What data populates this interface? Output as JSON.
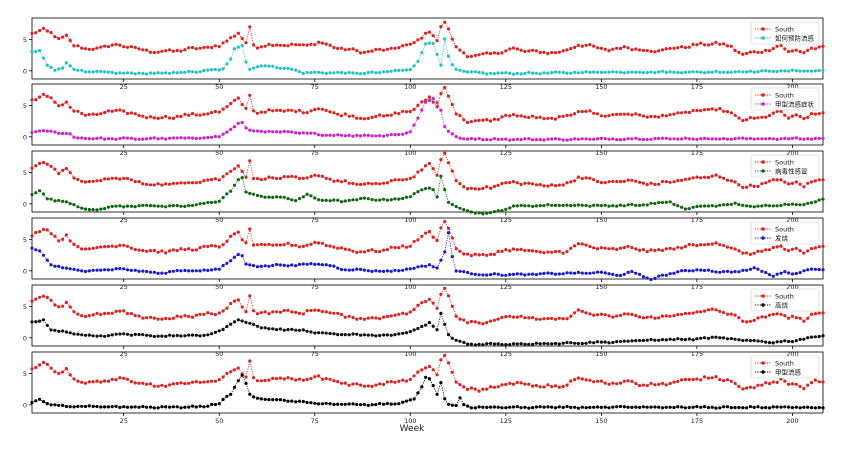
{
  "chart_data": {
    "type": "line",
    "xlabel": "Week",
    "xlim": [
      1,
      208
    ],
    "ylim": [
      -1.3,
      8.4
    ],
    "xticks": [
      25,
      50,
      75,
      100,
      125,
      150,
      175,
      200
    ],
    "yticks": [
      0,
      5
    ],
    "reference_series": {
      "name": "South",
      "color": "#dd2222",
      "keypoints": [
        [
          1,
          5.8
        ],
        [
          4,
          6.7
        ],
        [
          6,
          6.0
        ],
        [
          8,
          4.9
        ],
        [
          10,
          5.6
        ],
        [
          12,
          4.1
        ],
        [
          15,
          3.4
        ],
        [
          20,
          3.8
        ],
        [
          24,
          4.2
        ],
        [
          28,
          3.5
        ],
        [
          34,
          3.0
        ],
        [
          40,
          3.3
        ],
        [
          46,
          3.7
        ],
        [
          50,
          3.9
        ],
        [
          53,
          5.3
        ],
        [
          55,
          6.0
        ],
        [
          56,
          5.1
        ],
        [
          57,
          4.4
        ],
        [
          58,
          6.8
        ],
        [
          59,
          4.2
        ],
        [
          60,
          3.9
        ],
        [
          66,
          4.2
        ],
        [
          72,
          4.0
        ],
        [
          76,
          4.5
        ],
        [
          82,
          3.5
        ],
        [
          88,
          3.0
        ],
        [
          94,
          3.4
        ],
        [
          100,
          4.1
        ],
        [
          103,
          5.4
        ],
        [
          105,
          6.2
        ],
        [
          106,
          5.6
        ],
        [
          107,
          4.8
        ],
        [
          108,
          7.0
        ],
        [
          109,
          7.9
        ],
        [
          110,
          6.6
        ],
        [
          111,
          5.1
        ],
        [
          112,
          3.6
        ],
        [
          115,
          2.5
        ],
        [
          118,
          2.4
        ],
        [
          122,
          2.8
        ],
        [
          127,
          3.5
        ],
        [
          130,
          3.2
        ],
        [
          135,
          2.9
        ],
        [
          140,
          3.0
        ],
        [
          144,
          4.2
        ],
        [
          147,
          3.9
        ],
        [
          152,
          3.3
        ],
        [
          157,
          3.8
        ],
        [
          160,
          3.3
        ],
        [
          165,
          3.2
        ],
        [
          170,
          3.7
        ],
        [
          175,
          4.1
        ],
        [
          180,
          4.4
        ],
        [
          184,
          3.8
        ],
        [
          187,
          2.6
        ],
        [
          190,
          2.9
        ],
        [
          194,
          3.4
        ],
        [
          197,
          4.0
        ],
        [
          199,
          3.1
        ],
        [
          201,
          3.3
        ],
        [
          203,
          2.8
        ],
        [
          205,
          3.6
        ],
        [
          208,
          3.8
        ]
      ]
    },
    "panels": [
      {
        "label": "如何预防流感",
        "color": "#22c3c3",
        "keypoints": [
          [
            1,
            3.1
          ],
          [
            3,
            3.2
          ],
          [
            5,
            0.9
          ],
          [
            7,
            0.1
          ],
          [
            9,
            0.4
          ],
          [
            10,
            1.4
          ],
          [
            12,
            0.2
          ],
          [
            16,
            -0.2
          ],
          [
            20,
            -0.2
          ],
          [
            25,
            -0.4
          ],
          [
            35,
            -0.4
          ],
          [
            45,
            -0.1
          ],
          [
            51,
            0.3
          ],
          [
            53,
            1.8
          ],
          [
            54,
            3.5
          ],
          [
            56,
            4.1
          ],
          [
            57,
            1.5
          ],
          [
            58,
            0.3
          ],
          [
            61,
            0.8
          ],
          [
            64,
            0.7
          ],
          [
            68,
            0.3
          ],
          [
            70,
            0.1
          ],
          [
            72,
            -0.3
          ],
          [
            80,
            -0.3
          ],
          [
            88,
            -0.4
          ],
          [
            95,
            -0.1
          ],
          [
            100,
            0.2
          ],
          [
            102,
            1.5
          ],
          [
            104,
            4.3
          ],
          [
            106,
            4.4
          ],
          [
            107,
            2.7
          ],
          [
            108,
            1.0
          ],
          [
            109,
            5.1
          ],
          [
            110,
            2.2
          ],
          [
            111,
            0.9
          ],
          [
            112,
            0.2
          ],
          [
            115,
            -0.2
          ],
          [
            120,
            -0.4
          ],
          [
            130,
            -0.4
          ],
          [
            140,
            -0.3
          ],
          [
            150,
            -0.2
          ],
          [
            160,
            -0.2
          ],
          [
            170,
            -0.2
          ],
          [
            180,
            -0.2
          ],
          [
            190,
            -0.1
          ],
          [
            200,
            0.0
          ],
          [
            205,
            0.0
          ],
          [
            208,
            0.0
          ]
        ]
      },
      {
        "label": "甲型流感症状",
        "color": "#cc22cc",
        "keypoints": [
          [
            1,
            0.8
          ],
          [
            5,
            0.9
          ],
          [
            9,
            0.6
          ],
          [
            11,
            0.4
          ],
          [
            12,
            -0.1
          ],
          [
            18,
            -0.3
          ],
          [
            30,
            -0.3
          ],
          [
            45,
            -0.2
          ],
          [
            50,
            0.1
          ],
          [
            53,
            1.1
          ],
          [
            55,
            2.1
          ],
          [
            56,
            2.3
          ],
          [
            57,
            1.4
          ],
          [
            59,
            0.9
          ],
          [
            65,
            0.8
          ],
          [
            72,
            0.6
          ],
          [
            78,
            0.3
          ],
          [
            85,
            0.2
          ],
          [
            92,
            0.2
          ],
          [
            98,
            0.4
          ],
          [
            100,
            0.9
          ],
          [
            102,
            2.9
          ],
          [
            104,
            5.5
          ],
          [
            106,
            6.2
          ],
          [
            107,
            5.5
          ],
          [
            108,
            4.2
          ],
          [
            109,
            1.5
          ],
          [
            110,
            0.9
          ],
          [
            112,
            0.0
          ],
          [
            114,
            -0.3
          ],
          [
            125,
            -0.4
          ],
          [
            140,
            -0.4
          ],
          [
            160,
            -0.3
          ],
          [
            180,
            -0.3
          ],
          [
            200,
            -0.3
          ],
          [
            208,
            -0.3
          ]
        ]
      },
      {
        "label": "病毒性感冒",
        "color": "#116611",
        "keypoints": [
          [
            1,
            1.6
          ],
          [
            3,
            2.1
          ],
          [
            5,
            0.8
          ],
          [
            10,
            0.3
          ],
          [
            14,
            -0.6
          ],
          [
            18,
            -1.1
          ],
          [
            20,
            -0.7
          ],
          [
            22,
            -0.3
          ],
          [
            25,
            -0.5
          ],
          [
            30,
            -0.2
          ],
          [
            35,
            -0.4
          ],
          [
            40,
            -0.4
          ],
          [
            45,
            -0.1
          ],
          [
            50,
            0.5
          ],
          [
            53,
            2.0
          ],
          [
            55,
            3.8
          ],
          [
            56,
            4.3
          ],
          [
            57,
            1.9
          ],
          [
            60,
            1.2
          ],
          [
            65,
            1.1
          ],
          [
            70,
            0.6
          ],
          [
            73,
            1.4
          ],
          [
            76,
            0.7
          ],
          [
            82,
            0.4
          ],
          [
            88,
            0.8
          ],
          [
            94,
            0.6
          ],
          [
            100,
            1.1
          ],
          [
            103,
            2.3
          ],
          [
            105,
            2.6
          ],
          [
            106,
            2.2
          ],
          [
            107,
            1.0
          ],
          [
            108,
            4.3
          ],
          [
            109,
            2.2
          ],
          [
            110,
            0.3
          ],
          [
            113,
            -0.6
          ],
          [
            116,
            -1.4
          ],
          [
            121,
            -1.5
          ],
          [
            124,
            -1.0
          ],
          [
            127,
            -0.4
          ],
          [
            131,
            -0.3
          ],
          [
            140,
            -0.2
          ],
          [
            150,
            -0.3
          ],
          [
            160,
            -0.2
          ],
          [
            168,
            0.3
          ],
          [
            172,
            -0.9
          ],
          [
            175,
            -0.4
          ],
          [
            180,
            -0.3
          ],
          [
            185,
            0.0
          ],
          [
            190,
            -0.5
          ],
          [
            195,
            -0.2
          ],
          [
            200,
            -0.1
          ],
          [
            205,
            0.1
          ],
          [
            208,
            0.7
          ]
        ]
      },
      {
        "label": "发烧",
        "color": "#1a1acc",
        "keypoints": [
          [
            1,
            3.6
          ],
          [
            3,
            3.1
          ],
          [
            6,
            1.0
          ],
          [
            10,
            0.3
          ],
          [
            15,
            0.0
          ],
          [
            20,
            0.2
          ],
          [
            25,
            0.3
          ],
          [
            30,
            -0.1
          ],
          [
            35,
            -0.4
          ],
          [
            40,
            0.1
          ],
          [
            45,
            0.0
          ],
          [
            50,
            0.3
          ],
          [
            53,
            1.6
          ],
          [
            55,
            2.7
          ],
          [
            56,
            2.4
          ],
          [
            57,
            1.1
          ],
          [
            60,
            0.7
          ],
          [
            65,
            0.9
          ],
          [
            70,
            0.9
          ],
          [
            75,
            1.1
          ],
          [
            78,
            1.0
          ],
          [
            82,
            0.3
          ],
          [
            88,
            0.1
          ],
          [
            94,
            -0.1
          ],
          [
            100,
            0.3
          ],
          [
            103,
            0.7
          ],
          [
            105,
            1.0
          ],
          [
            107,
            0.4
          ],
          [
            109,
            2.9
          ],
          [
            110,
            6.1
          ],
          [
            111,
            2.3
          ],
          [
            112,
            0.1
          ],
          [
            115,
            -0.4
          ],
          [
            120,
            -0.6
          ],
          [
            130,
            -0.6
          ],
          [
            140,
            -0.4
          ],
          [
            150,
            -0.3
          ],
          [
            155,
            -0.7
          ],
          [
            158,
            -0.2
          ],
          [
            160,
            -0.6
          ],
          [
            163,
            -1.4
          ],
          [
            166,
            -0.7
          ],
          [
            170,
            -0.2
          ],
          [
            175,
            0.2
          ],
          [
            180,
            -0.1
          ],
          [
            185,
            -0.2
          ],
          [
            190,
            0.4
          ],
          [
            195,
            -0.8
          ],
          [
            198,
            -0.1
          ],
          [
            200,
            -0.6
          ],
          [
            203,
            0.1
          ],
          [
            208,
            0.3
          ]
        ]
      },
      {
        "label": "高烧",
        "color": "#111111",
        "keypoints": [
          [
            1,
            2.5
          ],
          [
            4,
            2.8
          ],
          [
            6,
            1.3
          ],
          [
            10,
            0.9
          ],
          [
            15,
            0.4
          ],
          [
            20,
            0.3
          ],
          [
            24,
            0.6
          ],
          [
            30,
            0.5
          ],
          [
            35,
            0.2
          ],
          [
            40,
            0.4
          ],
          [
            45,
            0.3
          ],
          [
            50,
            1.0
          ],
          [
            53,
            2.1
          ],
          [
            55,
            3.0
          ],
          [
            57,
            2.5
          ],
          [
            60,
            1.8
          ],
          [
            65,
            1.3
          ],
          [
            70,
            1.3
          ],
          [
            75,
            0.9
          ],
          [
            80,
            0.6
          ],
          [
            85,
            0.5
          ],
          [
            90,
            0.4
          ],
          [
            95,
            0.4
          ],
          [
            100,
            0.9
          ],
          [
            103,
            1.8
          ],
          [
            105,
            2.4
          ],
          [
            107,
            1.2
          ],
          [
            108,
            3.9
          ],
          [
            109,
            2.1
          ],
          [
            110,
            0.5
          ],
          [
            112,
            -0.4
          ],
          [
            115,
            -1.0
          ],
          [
            125,
            -1.0
          ],
          [
            135,
            -0.9
          ],
          [
            145,
            -0.8
          ],
          [
            155,
            -0.6
          ],
          [
            165,
            -0.3
          ],
          [
            175,
            -0.2
          ],
          [
            180,
            0.1
          ],
          [
            185,
            -0.3
          ],
          [
            195,
            -0.7
          ],
          [
            200,
            -0.5
          ],
          [
            205,
            0.1
          ],
          [
            208,
            0.3
          ]
        ]
      },
      {
        "label": "甲型流感",
        "color": "#000000",
        "keypoints": [
          [
            1,
            0.3
          ],
          [
            3,
            0.8
          ],
          [
            5,
            0.2
          ],
          [
            10,
            -0.3
          ],
          [
            20,
            -0.3
          ],
          [
            35,
            -0.4
          ],
          [
            45,
            -0.3
          ],
          [
            50,
            0.2
          ],
          [
            53,
            1.8
          ],
          [
            55,
            3.8
          ],
          [
            56,
            4.7
          ],
          [
            57,
            3.4
          ],
          [
            58,
            1.6
          ],
          [
            60,
            1.0
          ],
          [
            65,
            0.8
          ],
          [
            72,
            0.4
          ],
          [
            80,
            0.1
          ],
          [
            90,
            0.0
          ],
          [
            98,
            0.3
          ],
          [
            101,
            1.0
          ],
          [
            103,
            2.9
          ],
          [
            104,
            4.3
          ],
          [
            105,
            4.2
          ],
          [
            106,
            3.0
          ],
          [
            107,
            1.6
          ],
          [
            108,
            3.5
          ],
          [
            109,
            1.1
          ],
          [
            110,
            0.1
          ],
          [
            112,
            -0.2
          ],
          [
            113,
            1.0
          ],
          [
            114,
            0.0
          ],
          [
            116,
            -0.4
          ],
          [
            130,
            -0.4
          ],
          [
            150,
            -0.4
          ],
          [
            170,
            -0.4
          ],
          [
            190,
            -0.4
          ],
          [
            208,
            -0.4
          ]
        ]
      }
    ]
  }
}
